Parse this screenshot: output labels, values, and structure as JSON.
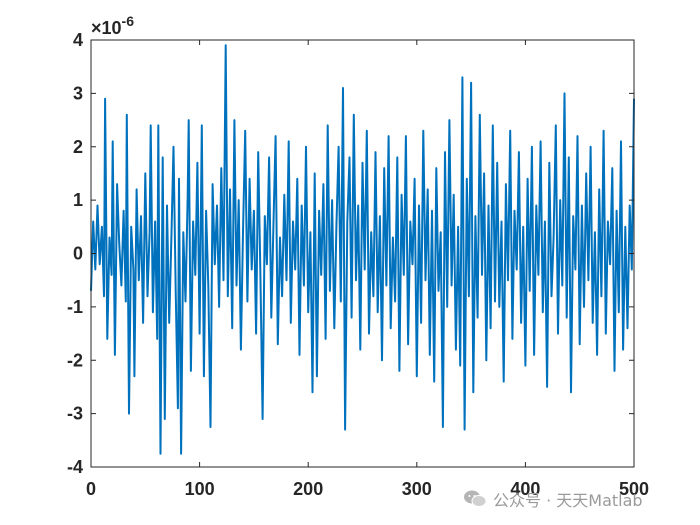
{
  "chart_data": {
    "type": "line",
    "title": "",
    "xlabel": "",
    "ylabel": "",
    "xlim": [
      0,
      500
    ],
    "ylim": [
      -4,
      4
    ],
    "y_scale_exponent_label": "×10",
    "y_scale_exponent_power": "-6",
    "x_ticks": [
      "0",
      "100",
      "200",
      "300",
      "400",
      "500"
    ],
    "y_ticks": [
      "-4",
      "-3",
      "-2",
      "-1",
      "0",
      "1",
      "2",
      "3",
      "4"
    ],
    "grid": false,
    "legend": "none",
    "series": [
      {
        "color": "#0072bd",
        "points": [
          [
            0,
            -0.7
          ],
          [
            2,
            0.6
          ],
          [
            4,
            -0.3
          ],
          [
            6,
            0.9
          ],
          [
            8,
            -0.2
          ],
          [
            10,
            0.5
          ],
          [
            12,
            -0.8
          ],
          [
            13,
            2.9
          ],
          [
            15,
            -1.6
          ],
          [
            17,
            0.3
          ],
          [
            19,
            -0.4
          ],
          [
            20,
            2.1
          ],
          [
            22,
            -1.9
          ],
          [
            24,
            1.3
          ],
          [
            26,
            0.2
          ],
          [
            28,
            -0.6
          ],
          [
            30,
            0.8
          ],
          [
            32,
            -0.9
          ],
          [
            33,
            2.6
          ],
          [
            35,
            -3.0
          ],
          [
            37,
            0.5
          ],
          [
            39,
            -0.3
          ],
          [
            40,
            -2.3
          ],
          [
            42,
            1.2
          ],
          [
            44,
            -0.5
          ],
          [
            46,
            0.7
          ],
          [
            48,
            -1.3
          ],
          [
            50,
            1.5
          ],
          [
            52,
            -0.8
          ],
          [
            54,
            0.4
          ],
          [
            55,
            2.4
          ],
          [
            57,
            -1.1
          ],
          [
            59,
            0.6
          ],
          [
            61,
            -1.6
          ],
          [
            62,
            2.4
          ],
          [
            64,
            -3.75
          ],
          [
            66,
            1.8
          ],
          [
            68,
            -3.1
          ],
          [
            70,
            0.9
          ],
          [
            72,
            -1.3
          ],
          [
            74,
            0.3
          ],
          [
            76,
            2.0
          ],
          [
            78,
            -0.7
          ],
          [
            80,
            -2.9
          ],
          [
            81,
            1.4
          ],
          [
            83,
            -3.75
          ],
          [
            85,
            0.4
          ],
          [
            87,
            -0.9
          ],
          [
            89,
            1.1
          ],
          [
            90,
            2.5
          ],
          [
            92,
            -2.2
          ],
          [
            94,
            0.6
          ],
          [
            96,
            -0.4
          ],
          [
            98,
            1.7
          ],
          [
            100,
            -1.5
          ],
          [
            102,
            2.4
          ],
          [
            104,
            -2.3
          ],
          [
            106,
            0.8
          ],
          [
            108,
            -0.6
          ],
          [
            110,
            -3.25
          ],
          [
            112,
            1.3
          ],
          [
            114,
            -0.2
          ],
          [
            116,
            0.9
          ],
          [
            118,
            -1.0
          ],
          [
            120,
            1.6
          ],
          [
            122,
            -0.5
          ],
          [
            124,
            3.9
          ],
          [
            126,
            -0.8
          ],
          [
            128,
            1.2
          ],
          [
            130,
            -1.4
          ],
          [
            132,
            2.5
          ],
          [
            134,
            -0.6
          ],
          [
            136,
            1.0
          ],
          [
            138,
            -1.8
          ],
          [
            140,
            0.4
          ],
          [
            142,
            2.3
          ],
          [
            144,
            -0.9
          ],
          [
            146,
            1.4
          ],
          [
            148,
            -0.3
          ],
          [
            150,
            0.8
          ],
          [
            152,
            -1.5
          ],
          [
            154,
            1.9
          ],
          [
            156,
            -0.4
          ],
          [
            158,
            -3.1
          ],
          [
            160,
            0.7
          ],
          [
            162,
            -0.2
          ],
          [
            164,
            1.8
          ],
          [
            166,
            -1.2
          ],
          [
            168,
            0.5
          ],
          [
            170,
            2.2
          ],
          [
            172,
            -1.7
          ],
          [
            174,
            0.3
          ],
          [
            176,
            -0.8
          ],
          [
            178,
            1.1
          ],
          [
            180,
            -0.5
          ],
          [
            182,
            2.1
          ],
          [
            184,
            -1.3
          ],
          [
            186,
            0.6
          ],
          [
            188,
            -0.3
          ],
          [
            190,
            1.4
          ],
          [
            192,
            -1.9
          ],
          [
            194,
            0.9
          ],
          [
            196,
            -0.6
          ],
          [
            198,
            2.0
          ],
          [
            200,
            -1.1
          ],
          [
            202,
            0.4
          ],
          [
            204,
            -2.6
          ],
          [
            206,
            1.5
          ],
          [
            208,
            -2.3
          ],
          [
            210,
            0.8
          ],
          [
            212,
            -0.4
          ],
          [
            214,
            1.3
          ],
          [
            216,
            -1.6
          ],
          [
            218,
            2.4
          ],
          [
            220,
            -0.7
          ],
          [
            222,
            1.0
          ],
          [
            224,
            -1.4
          ],
          [
            226,
            0.5
          ],
          [
            228,
            2.0
          ],
          [
            230,
            -0.9
          ],
          [
            232,
            3.1
          ],
          [
            234,
            -3.3
          ],
          [
            236,
            0.6
          ],
          [
            238,
            1.8
          ],
          [
            240,
            -1.2
          ],
          [
            242,
            2.6
          ],
          [
            244,
            -0.5
          ],
          [
            246,
            0.9
          ],
          [
            248,
            -1.8
          ],
          [
            250,
            1.7
          ],
          [
            252,
            -0.3
          ],
          [
            254,
            2.3
          ],
          [
            256,
            -1.5
          ],
          [
            258,
            0.4
          ],
          [
            260,
            -0.8
          ],
          [
            262,
            1.9
          ],
          [
            264,
            -1.1
          ],
          [
            266,
            0.7
          ],
          [
            268,
            -2.0
          ],
          [
            270,
            1.6
          ],
          [
            272,
            -0.6
          ],
          [
            274,
            2.2
          ],
          [
            276,
            -1.4
          ],
          [
            278,
            0.3
          ],
          [
            280,
            -0.9
          ],
          [
            282,
            1.8
          ],
          [
            284,
            -2.2
          ],
          [
            286,
            1.1
          ],
          [
            288,
            -0.4
          ],
          [
            290,
            2.2
          ],
          [
            292,
            -1.7
          ],
          [
            294,
            0.6
          ],
          [
            296,
            -0.2
          ],
          [
            298,
            1.4
          ],
          [
            300,
            -2.3
          ],
          [
            302,
            0.9
          ],
          [
            304,
            -1.3
          ],
          [
            306,
            2.3
          ],
          [
            308,
            -0.5
          ],
          [
            310,
            1.2
          ],
          [
            312,
            -1.9
          ],
          [
            314,
            0.8
          ],
          [
            316,
            -2.4
          ],
          [
            318,
            1.6
          ],
          [
            320,
            -0.7
          ],
          [
            322,
            0.4
          ],
          [
            324,
            -3.25
          ],
          [
            326,
            1.9
          ],
          [
            328,
            -1.0
          ],
          [
            330,
            2.5
          ],
          [
            332,
            -0.6
          ],
          [
            334,
            1.1
          ],
          [
            336,
            -1.8
          ],
          [
            338,
            0.5
          ],
          [
            340,
            -2.1
          ],
          [
            342,
            3.3
          ],
          [
            344,
            -3.3
          ],
          [
            346,
            1.4
          ],
          [
            348,
            -0.8
          ],
          [
            350,
            3.2
          ],
          [
            352,
            -2.6
          ],
          [
            354,
            0.7
          ],
          [
            356,
            -1.2
          ],
          [
            358,
            2.6
          ],
          [
            360,
            -0.4
          ],
          [
            362,
            1.5
          ],
          [
            364,
            -2.0
          ],
          [
            366,
            0.9
          ],
          [
            368,
            -1.4
          ],
          [
            370,
            2.4
          ],
          [
            372,
            -0.9
          ],
          [
            374,
            1.7
          ],
          [
            376,
            -1.0
          ],
          [
            378,
            0.6
          ],
          [
            380,
            -2.4
          ],
          [
            382,
            1.3
          ],
          [
            384,
            -0.5
          ],
          [
            386,
            2.3
          ],
          [
            388,
            -1.6
          ],
          [
            390,
            0.8
          ],
          [
            392,
            -0.3
          ],
          [
            394,
            1.9
          ],
          [
            396,
            -1.3
          ],
          [
            398,
            0.5
          ],
          [
            400,
            -2.1
          ],
          [
            402,
            1.4
          ],
          [
            404,
            -0.7
          ],
          [
            406,
            2.0
          ],
          [
            408,
            -1.9
          ],
          [
            410,
            0.9
          ],
          [
            412,
            -0.4
          ],
          [
            414,
            2.1
          ],
          [
            416,
            -1.1
          ],
          [
            418,
            0.6
          ],
          [
            420,
            -2.5
          ],
          [
            422,
            1.7
          ],
          [
            424,
            -0.8
          ],
          [
            426,
            0.3
          ],
          [
            428,
            2.4
          ],
          [
            430,
            -1.5
          ],
          [
            432,
            1.0
          ],
          [
            434,
            -0.6
          ],
          [
            436,
            3.0
          ],
          [
            438,
            -1.2
          ],
          [
            440,
            1.8
          ],
          [
            442,
            -2.6
          ],
          [
            444,
            0.7
          ],
          [
            446,
            -0.3
          ],
          [
            448,
            2.2
          ],
          [
            450,
            -1.7
          ],
          [
            452,
            0.9
          ],
          [
            454,
            -1.0
          ],
          [
            456,
            1.5
          ],
          [
            458,
            -0.5
          ],
          [
            460,
            2.0
          ],
          [
            462,
            -1.3
          ],
          [
            464,
            0.4
          ],
          [
            466,
            -1.9
          ],
          [
            468,
            1.2
          ],
          [
            470,
            -0.8
          ],
          [
            472,
            2.3
          ],
          [
            474,
            -1.5
          ],
          [
            476,
            0.6
          ],
          [
            478,
            -0.2
          ],
          [
            480,
            1.6
          ],
          [
            482,
            -2.2
          ],
          [
            484,
            0.8
          ],
          [
            486,
            -1.1
          ],
          [
            488,
            2.1
          ],
          [
            490,
            -1.8
          ],
          [
            492,
            0.5
          ],
          [
            494,
            -1.4
          ],
          [
            496,
            0.9
          ],
          [
            498,
            -0.3
          ],
          [
            500,
            2.9
          ]
        ]
      }
    ]
  },
  "watermark": {
    "text": "公众号 · 天天Matlab",
    "icon": "wechat-icon",
    "color": "#9a9a9a"
  }
}
